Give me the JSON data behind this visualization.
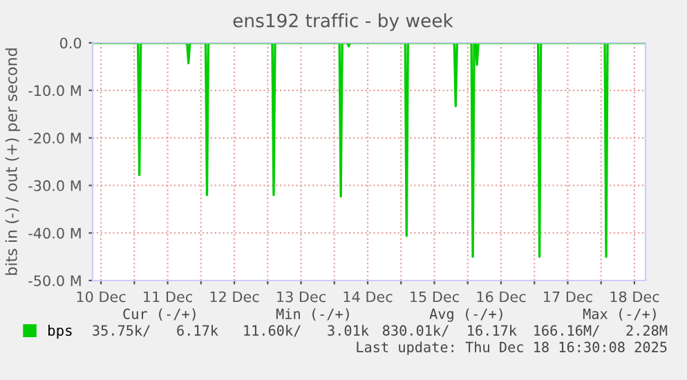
{
  "chart_data": {
    "type": "line",
    "title": "ens192 traffic - by week",
    "ylabel": "bits in (-) / out (+) per second",
    "x": [
      "2025-12-10T09:00",
      "2025-12-11T01:20",
      "2025-12-11T01:50",
      "2025-12-11T02:20",
      "2025-12-11T19:00",
      "2025-12-11T19:30",
      "2025-12-11T20:00",
      "2025-12-12T01:40",
      "2025-12-12T02:10",
      "2025-12-12T02:40",
      "2025-12-13T01:40",
      "2025-12-13T02:10",
      "2025-12-13T02:40",
      "2025-12-14T01:50",
      "2025-12-14T02:20",
      "2025-12-14T02:50",
      "2025-12-14T04:40",
      "2025-12-14T05:10",
      "2025-12-14T05:40",
      "2025-12-15T01:30",
      "2025-12-15T02:00",
      "2025-12-15T02:30",
      "2025-12-15T19:10",
      "2025-12-15T19:40",
      "2025-12-15T20:10",
      "2025-12-16T01:20",
      "2025-12-16T01:50",
      "2025-12-16T02:20",
      "2025-12-16T02:50",
      "2025-12-16T03:20",
      "2025-12-16T03:50",
      "2025-12-17T01:20",
      "2025-12-17T01:50",
      "2025-12-17T02:20",
      "2025-12-18T01:20",
      "2025-12-18T01:50",
      "2025-12-18T02:20",
      "2025-12-18T16:00"
    ],
    "series": [
      {
        "name": "bps",
        "color": "#00cc00",
        "values": [
          0,
          0,
          -27.8,
          0,
          0,
          -4.3,
          0,
          0,
          -32,
          0,
          0,
          -32,
          0,
          0,
          -32.3,
          0,
          0,
          -0.7,
          0,
          0,
          -40.6,
          0,
          0,
          -13.3,
          0,
          0,
          -45,
          0,
          0,
          -4.6,
          0,
          0,
          -45,
          0,
          0,
          -45,
          0,
          0
        ]
      }
    ],
    "xlim": [
      "2025-12-10T09:00",
      "2025-12-18T16:00"
    ],
    "xticks": [
      {
        "value": "2025-12-10T12:00",
        "label": "10 Dec"
      },
      {
        "value": "2025-12-11T00:00",
        "label": null
      },
      {
        "value": "2025-12-11T12:00",
        "label": "11 Dec"
      },
      {
        "value": "2025-12-12T00:00",
        "label": null
      },
      {
        "value": "2025-12-12T12:00",
        "label": "12 Dec"
      },
      {
        "value": "2025-12-13T00:00",
        "label": null
      },
      {
        "value": "2025-12-13T12:00",
        "label": "13 Dec"
      },
      {
        "value": "2025-12-14T00:00",
        "label": null
      },
      {
        "value": "2025-12-14T12:00",
        "label": "14 Dec"
      },
      {
        "value": "2025-12-15T00:00",
        "label": null
      },
      {
        "value": "2025-12-15T12:00",
        "label": "15 Dec"
      },
      {
        "value": "2025-12-16T00:00",
        "label": null
      },
      {
        "value": "2025-12-16T12:00",
        "label": "16 Dec"
      },
      {
        "value": "2025-12-17T00:00",
        "label": null
      },
      {
        "value": "2025-12-17T12:00",
        "label": "17 Dec"
      },
      {
        "value": "2025-12-18T00:00",
        "label": null
      },
      {
        "value": "2025-12-18T12:00",
        "label": "18 Dec"
      }
    ],
    "ylim": [
      -50,
      0
    ],
    "yticks": [
      {
        "value": 0,
        "label": "0.0"
      },
      {
        "value": -10,
        "label": "-10.0 M"
      },
      {
        "value": -20,
        "label": "-20.0 M"
      },
      {
        "value": -30,
        "label": "-30.0 M"
      },
      {
        "value": -40,
        "label": "-40.0 M"
      },
      {
        "value": -50,
        "label": "-50.0 M"
      }
    ],
    "grid": true,
    "legend": "bottom left",
    "marker": "none",
    "line_style": "solid",
    "annotations": [
      "Cur (-/+)",
      "Min (-/+)",
      "Avg (-/+)",
      "Max (-/+)",
      "35.75k/   6.17k",
      "11.60k/   3.01k",
      "830.01k/  16.17k",
      "166.16M/   2.28M",
      "Last update: Thu Dec 18 16:30:08 2025"
    ]
  }
}
